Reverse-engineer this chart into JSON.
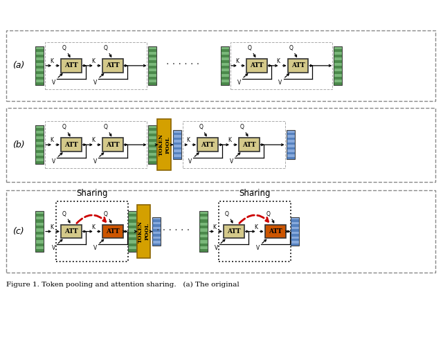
{
  "fig_width": 6.4,
  "fig_height": 5.03,
  "bg_color": "#ffffff",
  "green_fill": "#7ab87a",
  "green_stripe": "#2d6b2d",
  "blue_fill": "#88aadd",
  "blue_stripe": "#3366aa",
  "gold_fill": "#d4a000",
  "gold_edge": "#8b6500",
  "att_normal": "#d4c98a",
  "att_red": "#cc5500",
  "red_arrow": "#cc0000",
  "label_a": "(a)",
  "label_b": "(b)",
  "label_c": "(c)",
  "caption": "Figure 1. Token pooling and attention sharing.   (a) The original"
}
